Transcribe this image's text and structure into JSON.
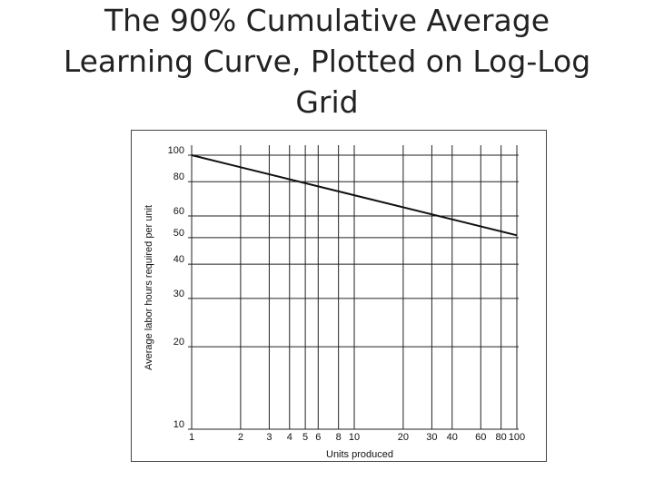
{
  "slide": {
    "title_lines": [
      "The 90% Cumulative Average",
      "Learning Curve, Plotted on Log-Log",
      "Grid"
    ]
  },
  "colors": {
    "line": "#111111",
    "grid": "#222222",
    "text": "#222222"
  },
  "chart_data": {
    "type": "line",
    "x_scale": "log",
    "y_scale": "log",
    "xlabel": "Units produced",
    "ylabel": "Average labor hours required per unit",
    "xlim": [
      1,
      100
    ],
    "ylim": [
      10,
      100
    ],
    "x_ticks": [
      1,
      2,
      3,
      4,
      5,
      6,
      8,
      10,
      20,
      30,
      40,
      60,
      80,
      100
    ],
    "y_ticks": [
      10,
      20,
      30,
      40,
      50,
      60,
      80,
      100
    ],
    "grid": true,
    "series": [
      {
        "x": [
          1,
          100
        ],
        "y": [
          100,
          51
        ]
      }
    ]
  }
}
